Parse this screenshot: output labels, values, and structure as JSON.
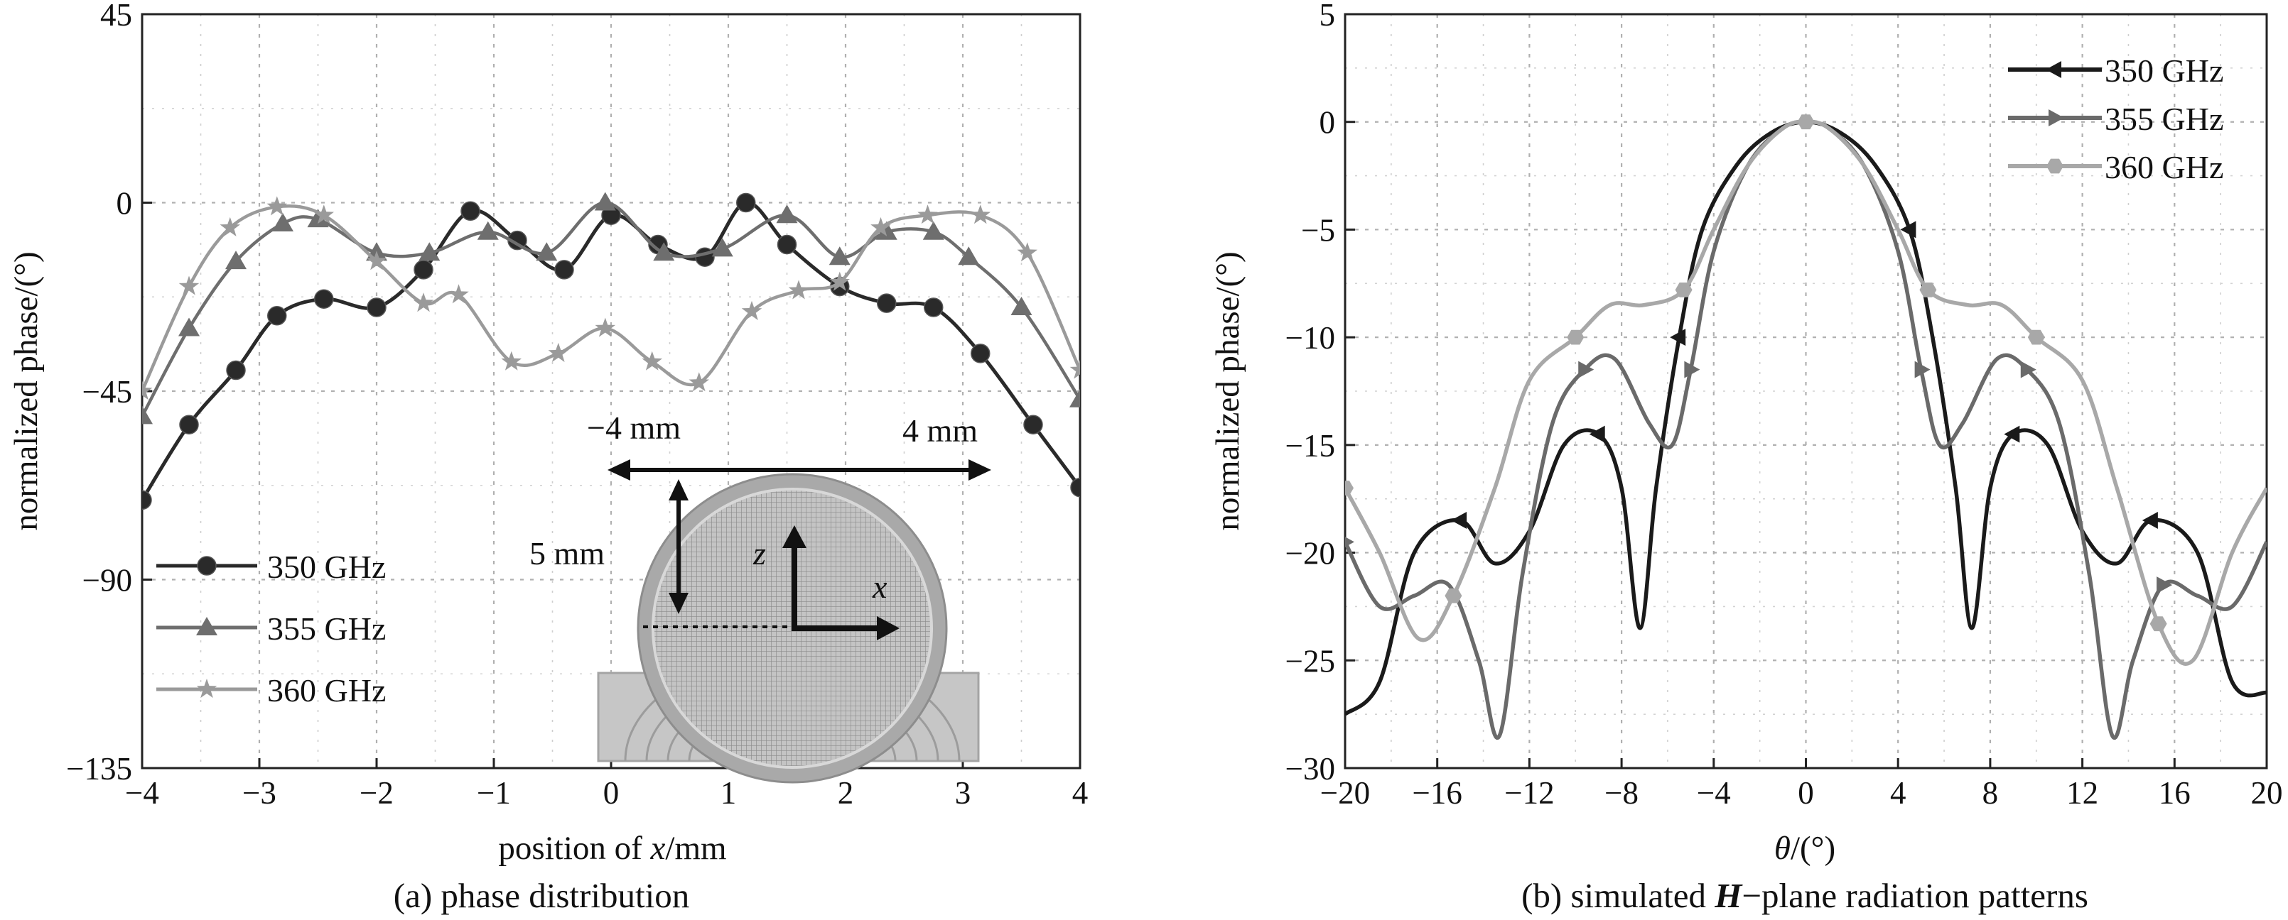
{
  "colors": {
    "350 GHz": "#2a2a2a",
    "355 GHz": "#6e6e6e",
    "360 GHz": "#9a9a9a",
    "b_350 GHz": "#1a1a1a",
    "b_355 GHz": "#6a6a6a",
    "b_360 GHz": "#a8a8a8"
  },
  "chart_data": [
    {
      "type": "line",
      "caption": "(a) phase distribution",
      "xlabel_prefix": "position of ",
      "xlabel_var": "x",
      "xlabel_suffix": "/mm",
      "ylabel": "normalized phase/(°)",
      "xlim": [
        -4,
        4
      ],
      "ylim": [
        -135,
        45
      ],
      "xticks": [
        "−4",
        "−3",
        "−2",
        "−1",
        "0",
        "1",
        "2",
        "3",
        "4"
      ],
      "yticks": [
        "45",
        "0",
        "−45",
        "−90",
        "−135"
      ],
      "grid": true,
      "legend_position": "bottom-left",
      "inset": {
        "width_left": "−4 mm",
        "width_right": "4 mm",
        "height": "5 mm",
        "axis_z": "z",
        "axis_x": "x"
      },
      "series": [
        {
          "name": "350 GHz",
          "marker": "circle",
          "x": [
            -4,
            -3.6,
            -3.2,
            -2.85,
            -2.45,
            -2.0,
            -1.6,
            -1.2,
            -0.8,
            -0.4,
            0.0,
            0.4,
            0.8,
            1.15,
            1.5,
            1.95,
            2.35,
            2.75,
            3.15,
            3.6,
            4.0
          ],
          "y": [
            -71,
            -53,
            -40,
            -27,
            -23,
            -25,
            -16,
            -2,
            -9,
            -16,
            -3,
            -10,
            -13,
            0,
            -10,
            -20,
            -24,
            -25,
            -36,
            -53,
            -68
          ]
        },
        {
          "name": "355 GHz",
          "marker": "triangle",
          "x": [
            -4,
            -3.6,
            -3.2,
            -2.8,
            -2.5,
            -2.0,
            -1.55,
            -1.05,
            -0.55,
            -0.05,
            0.45,
            0.95,
            1.5,
            1.95,
            2.35,
            2.75,
            3.05,
            3.5,
            4.0
          ],
          "y": [
            -51,
            -30,
            -14,
            -5,
            -4,
            -12,
            -12,
            -7,
            -12,
            0,
            -12,
            -11,
            -3,
            -13,
            -7,
            -7,
            -13,
            -25,
            -47
          ]
        },
        {
          "name": "360 GHz",
          "marker": "star",
          "x": [
            -4,
            -3.6,
            -3.25,
            -2.85,
            -2.45,
            -2.0,
            -1.6,
            -1.3,
            -0.85,
            -0.45,
            -0.05,
            0.35,
            0.75,
            1.2,
            1.6,
            1.95,
            2.3,
            2.7,
            3.15,
            3.55,
            4.0
          ],
          "y": [
            -45,
            -20,
            -6,
            -1,
            -3,
            -14,
            -24,
            -22,
            -38,
            -36,
            -30,
            -38,
            -43,
            -26,
            -21,
            -19,
            -6,
            -3,
            -3,
            -12,
            -40
          ]
        }
      ]
    },
    {
      "type": "line",
      "caption_prefix": "(b) simulated ",
      "caption_em": "H",
      "caption_suffix": "−plane radiation patterns",
      "xlabel_var": "θ",
      "xlabel_suffix": "/(°)",
      "ylabel": "normalized phase/(°)",
      "xlim": [
        -20,
        20
      ],
      "ylim": [
        -30,
        5
      ],
      "xticks": [
        "−20",
        "−16",
        "−12",
        "−8",
        "−4",
        "0",
        "4",
        "8",
        "12",
        "16",
        "20"
      ],
      "yticks": [
        "5",
        "0",
        "−5",
        "−10",
        "−15",
        "−20",
        "−25",
        "−30"
      ],
      "grid": true,
      "legend_position": "top-right",
      "series": [
        {
          "name": "350 GHz",
          "marker": "left-triangle",
          "x": [
            -20,
            -18.5,
            -17,
            -15,
            -13.5,
            -12,
            -10.5,
            -9,
            -8,
            -7.2,
            -6.5,
            -5.5,
            -4.5,
            -3,
            -1.5,
            0,
            1.5,
            3,
            4.5,
            5.5,
            6.5,
            7.2,
            8,
            9,
            10.5,
            12,
            13.5,
            15,
            17,
            18.5,
            20
          ],
          "y": [
            -27.5,
            -26,
            -20,
            -18.5,
            -20.5,
            -19,
            -15,
            -14.5,
            -17,
            -23.5,
            -17,
            -10,
            -5,
            -2,
            -0.5,
            0,
            -0.5,
            -2,
            -5,
            -10,
            -17,
            -23.5,
            -17,
            -14.5,
            -15,
            -19,
            -20.5,
            -18.5,
            -20,
            -26,
            -26.5
          ]
        },
        {
          "name": "355 GHz",
          "marker": "right-triangle",
          "x": [
            -20,
            -18.5,
            -17,
            -15.5,
            -14.2,
            -13.3,
            -12.3,
            -11,
            -9.6,
            -8.3,
            -6.8,
            -5.8,
            -5,
            -4,
            -2.5,
            -1,
            0,
            1,
            2.5,
            4,
            5,
            5.8,
            6.8,
            8.3,
            9.6,
            11,
            12.3,
            13.3,
            14.2,
            15.5,
            17,
            18.5,
            20
          ],
          "y": [
            -19.5,
            -22.5,
            -22,
            -21.5,
            -25,
            -28.5,
            -21,
            -14,
            -11.5,
            -11,
            -14,
            -15,
            -11.5,
            -6,
            -2,
            -0.3,
            0,
            -0.3,
            -2,
            -6,
            -11.5,
            -15,
            -14,
            -11,
            -11.5,
            -14,
            -21,
            -28.5,
            -25,
            -21.5,
            -22,
            -22.5,
            -19.5
          ]
        },
        {
          "name": "360 GHz",
          "marker": "hexagon",
          "x": [
            -20,
            -18.5,
            -16.8,
            -15.3,
            -13.5,
            -12,
            -10,
            -8.5,
            -7,
            -5.3,
            -4,
            -2.5,
            -1,
            0,
            1,
            2.5,
            4,
            5.3,
            7,
            8.5,
            10,
            12,
            13.5,
            15.3,
            16.8,
            18.5,
            20
          ],
          "y": [
            -17,
            -20,
            -24,
            -22,
            -17,
            -12,
            -10,
            -8.5,
            -8.5,
            -7.8,
            -5,
            -2,
            -0.3,
            0,
            -0.3,
            -2,
            -5,
            -7.8,
            -8.5,
            -8.5,
            -10,
            -12,
            -17,
            -23.3,
            -25,
            -20,
            -17
          ]
        }
      ]
    }
  ]
}
